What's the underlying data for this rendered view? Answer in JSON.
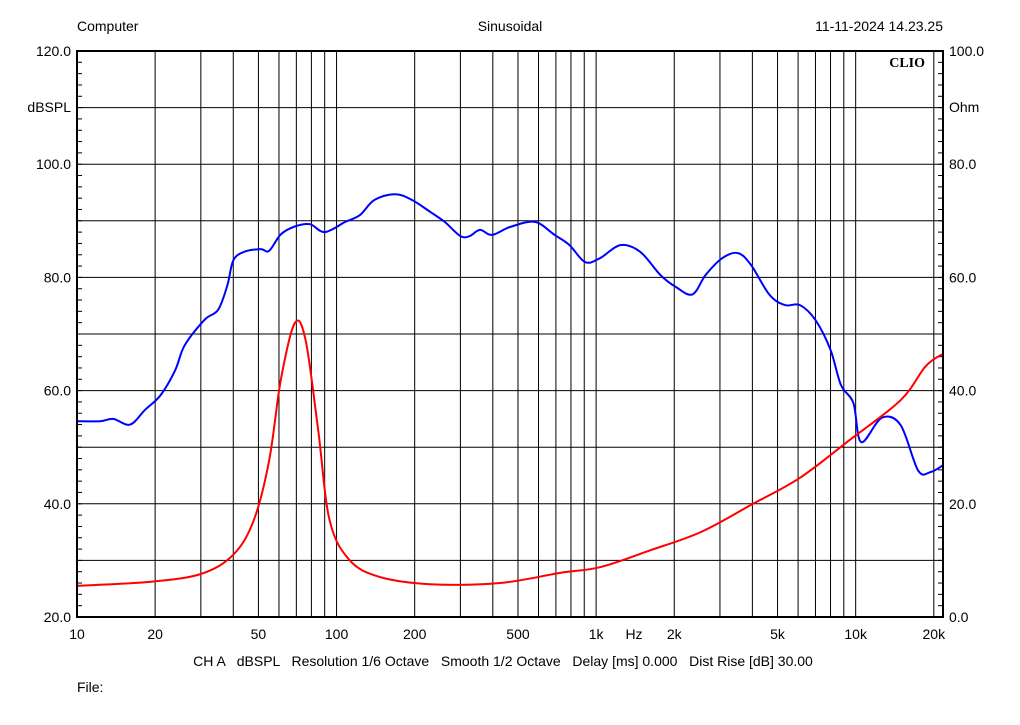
{
  "header": {
    "left": "Computer",
    "center": "Sinusoidal",
    "right": "11-11-2024 14.23.25"
  },
  "logo": "CLIO",
  "footer": {
    "settings": "CH A   dBSPL   Resolution 1/6 Octave   Smooth 1/2 Octave   Delay [ms] 0.000   Dist Rise [dB] 30.00",
    "file": "File:"
  },
  "chart_data": {
    "type": "line",
    "x_scale": "log",
    "xlim": [
      10,
      21700
    ],
    "x_unit_label": "Hz",
    "x_ticks": [
      {
        "value": 10,
        "label": "10"
      },
      {
        "value": 20,
        "label": "20"
      },
      {
        "value": 50,
        "label": "50"
      },
      {
        "value": 100,
        "label": "100"
      },
      {
        "value": 200,
        "label": "200"
      },
      {
        "value": 500,
        "label": "500"
      },
      {
        "value": 1000,
        "label": "1k"
      },
      {
        "value": 2000,
        "label": "2k"
      },
      {
        "value": 5000,
        "label": "5k"
      },
      {
        "value": 10000,
        "label": "10k"
      },
      {
        "value": 20000,
        "label": "20k"
      }
    ],
    "y_left": {
      "label": "dBSPL",
      "ylim": [
        20,
        120
      ],
      "ticks": [
        "120.0",
        "100.0",
        "80.0",
        "60.0",
        "40.0",
        "20.0"
      ]
    },
    "y_right": {
      "label": "Ohm",
      "ylim": [
        0,
        100
      ],
      "ticks": [
        "100.0",
        "80.0",
        "60.0",
        "40.0",
        "20.0",
        "0.0"
      ]
    },
    "grid": true,
    "series": [
      {
        "axis": "left",
        "color": "#0000ff",
        "points": [
          [
            10,
            54.6
          ],
          [
            12.3,
            54.6
          ],
          [
            13.8,
            55
          ],
          [
            16,
            54
          ],
          [
            18.3,
            56.6
          ],
          [
            21,
            59.2
          ],
          [
            23.9,
            63.6
          ],
          [
            26,
            68
          ],
          [
            31,
            72.5
          ],
          [
            35,
            74.3
          ],
          [
            38,
            78.7
          ],
          [
            40,
            83
          ],
          [
            44,
            84.5
          ],
          [
            51,
            85
          ],
          [
            55,
            84.7
          ],
          [
            61,
            87.6
          ],
          [
            69,
            89
          ],
          [
            79,
            89.4
          ],
          [
            90,
            88
          ],
          [
            108,
            89.8
          ],
          [
            123,
            91
          ],
          [
            140,
            93.7
          ],
          [
            168,
            94.7
          ],
          [
            195,
            93.7
          ],
          [
            229,
            91.6
          ],
          [
            261,
            89.8
          ],
          [
            300,
            87.3
          ],
          [
            326,
            87.3
          ],
          [
            357,
            88.4
          ],
          [
            397,
            87.5
          ],
          [
            466,
            88.9
          ],
          [
            581,
            89.8
          ],
          [
            692,
            87.5
          ],
          [
            790,
            85.7
          ],
          [
            907,
            82.7
          ],
          [
            1035,
            83.4
          ],
          [
            1240,
            85.7
          ],
          [
            1480,
            84.5
          ],
          [
            1770,
            80.4
          ],
          [
            2030,
            78.3
          ],
          [
            2350,
            77
          ],
          [
            2640,
            80.4
          ],
          [
            3060,
            83.4
          ],
          [
            3520,
            84.3
          ],
          [
            3950,
            82.2
          ],
          [
            4660,
            76.9
          ],
          [
            5340,
            75.1
          ],
          [
            6100,
            75.1
          ],
          [
            6990,
            72.5
          ],
          [
            8000,
            67.2
          ],
          [
            8770,
            61
          ],
          [
            9800,
            57.8
          ],
          [
            10500,
            50.9
          ],
          [
            12600,
            55.2
          ],
          [
            14900,
            53.9
          ],
          [
            17400,
            45.9
          ],
          [
            19400,
            45.6
          ],
          [
            21700,
            46.8
          ]
        ]
      },
      {
        "axis": "right",
        "color": "#ff0000",
        "points": [
          [
            10,
            5.5
          ],
          [
            19,
            6.2
          ],
          [
            30,
            7.6
          ],
          [
            40,
            11
          ],
          [
            48,
            17.1
          ],
          [
            55,
            27.7
          ],
          [
            61,
            41.9
          ],
          [
            69,
            51.9
          ],
          [
            76,
            48.9
          ],
          [
            85,
            33
          ],
          [
            94,
            17.1
          ],
          [
            112,
            10.1
          ],
          [
            146,
            7.1
          ],
          [
            229,
            5.8
          ],
          [
            426,
            6
          ],
          [
            727,
            7.8
          ],
          [
            1035,
            8.8
          ],
          [
            1620,
            11.8
          ],
          [
            2530,
            15
          ],
          [
            3950,
            19.8
          ],
          [
            6100,
            24.6
          ],
          [
            9500,
            31.3
          ],
          [
            14900,
            38.3
          ],
          [
            18600,
            44.3
          ],
          [
            21700,
            46.5
          ]
        ]
      }
    ]
  }
}
